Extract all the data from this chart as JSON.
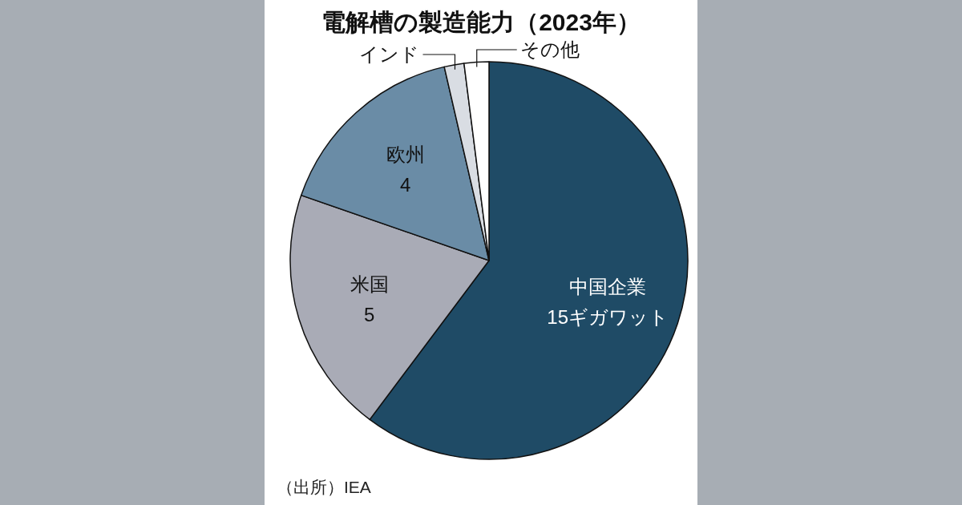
{
  "chart_data": {
    "type": "pie",
    "title": "電解槽の製造能力（2023年）",
    "categories": [
      "中国企業",
      "米国",
      "欧州",
      "インド",
      "その他"
    ],
    "values": [
      15,
      5,
      4,
      0.4,
      0.5
    ],
    "value_labels": [
      "15ギガワット",
      "5",
      "4",
      null,
      null
    ],
    "colors": [
      "#1f4b66",
      "#a9abb6",
      "#6a8ca6",
      "#d9dde3",
      "#ffffff"
    ],
    "annotations": [
      "（出所）IEA"
    ]
  }
}
